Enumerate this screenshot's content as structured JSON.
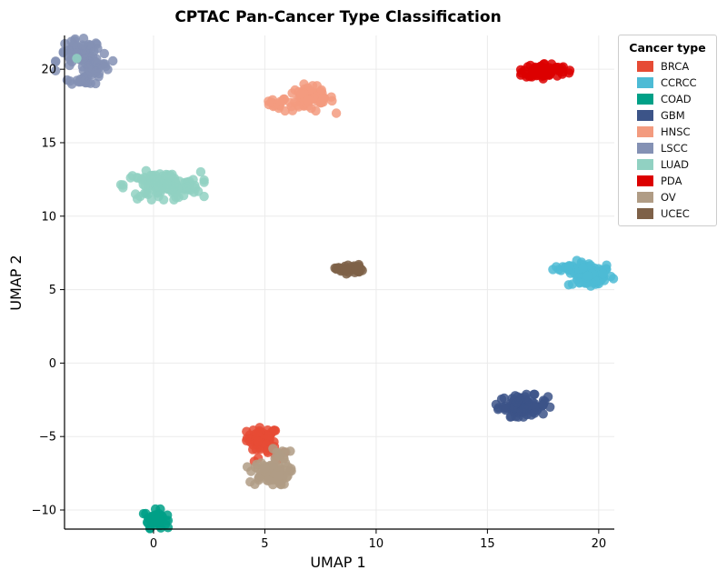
{
  "chart_data": {
    "type": "scatter",
    "title": "CPTAC Pan-Cancer Type Classification",
    "xlabel": "UMAP 1",
    "ylabel": "UMAP 2",
    "xlim": [
      -4,
      20.7
    ],
    "ylim": [
      -11.3,
      22.3
    ],
    "xticks": [
      0,
      5,
      10,
      15,
      20
    ],
    "yticks": [
      -10,
      -5,
      0,
      5,
      10,
      15,
      20
    ],
    "grid": true,
    "legend_title": "Cancer type",
    "legend_position": "top-right",
    "series": [
      {
        "name": "BRCA",
        "color": "#E64B35",
        "clusters": [
          {
            "cx": 4.9,
            "cy": -5.1,
            "sx": 0.35,
            "sy": 0.35,
            "n": 60
          },
          {
            "cx": 5.0,
            "cy": -6.2,
            "sx": 0.5,
            "sy": 0.4,
            "n": 14
          }
        ]
      },
      {
        "name": "CCRCC",
        "color": "#4DBBD5",
        "clusters": [
          {
            "cx": 19.6,
            "cy": 6.0,
            "sx": 0.5,
            "sy": 0.45,
            "n": 80
          },
          {
            "cx": 18.7,
            "cy": 6.5,
            "sx": 0.35,
            "sy": 0.15,
            "n": 20
          }
        ]
      },
      {
        "name": "COAD",
        "color": "#00A087",
        "clusters": [
          {
            "cx": 0.1,
            "cy": -10.6,
            "sx": 0.25,
            "sy": 0.3,
            "n": 45
          }
        ]
      },
      {
        "name": "GBM",
        "color": "#3C5488",
        "clusters": [
          {
            "cx": 16.6,
            "cy": -2.9,
            "sx": 0.55,
            "sy": 0.35,
            "n": 90
          }
        ]
      },
      {
        "name": "HNSC",
        "color": "#F39B7F",
        "clusters": [
          {
            "cx": 7.0,
            "cy": 18.0,
            "sx": 0.55,
            "sy": 0.45,
            "n": 70
          },
          {
            "cx": 5.4,
            "cy": 17.6,
            "sx": 0.25,
            "sy": 0.15,
            "n": 15
          }
        ]
      },
      {
        "name": "LSCC",
        "color": "#8491B4",
        "clusters": [
          {
            "cx": -3.3,
            "cy": 21.0,
            "sx": 0.5,
            "sy": 0.5,
            "n": 55
          },
          {
            "cx": -2.6,
            "cy": 20.3,
            "sx": 0.35,
            "sy": 0.4,
            "n": 30
          },
          {
            "cx": -3.0,
            "cy": 19.3,
            "sx": 0.4,
            "sy": 0.15,
            "n": 20
          }
        ]
      },
      {
        "name": "LUAD",
        "color": "#91D1C2",
        "clusters": [
          {
            "cx": 0.4,
            "cy": 12.1,
            "sx": 0.85,
            "sy": 0.45,
            "n": 130
          },
          {
            "cx": -3.4,
            "cy": 20.7,
            "sx": 0.05,
            "sy": 0.05,
            "n": 1
          }
        ]
      },
      {
        "name": "PDA",
        "color": "#DC0000",
        "clusters": [
          {
            "cx": 17.6,
            "cy": 19.9,
            "sx": 0.5,
            "sy": 0.25,
            "n": 80
          }
        ]
      },
      {
        "name": "OV",
        "color": "#B09C85",
        "clusters": [
          {
            "cx": 5.2,
            "cy": -7.5,
            "sx": 0.45,
            "sy": 0.4,
            "n": 80
          },
          {
            "cx": 5.7,
            "cy": -6.2,
            "sx": 0.2,
            "sy": 0.2,
            "n": 10
          }
        ]
      },
      {
        "name": "UCEC",
        "color": "#7E6148",
        "clusters": [
          {
            "cx": 8.8,
            "cy": 6.4,
            "sx": 0.3,
            "sy": 0.15,
            "n": 40
          }
        ]
      }
    ]
  }
}
